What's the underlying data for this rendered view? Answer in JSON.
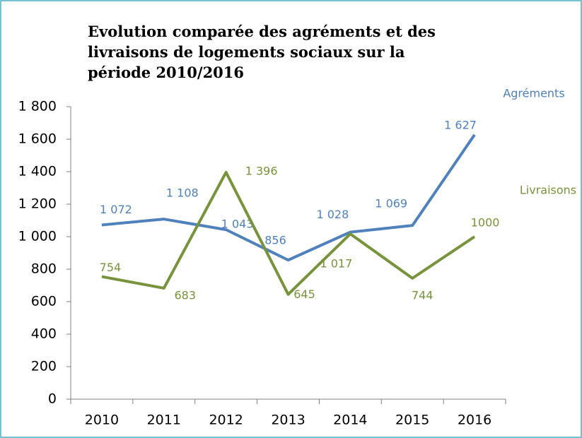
{
  "chart_data": {
    "type": "line",
    "title": "Evolution comparée des agréments et des livraisons de logements sociaux sur la période 2010/2016",
    "categories": [
      "2010",
      "2011",
      "2012",
      "2013",
      "2014",
      "2015",
      "2016"
    ],
    "series": [
      {
        "name": "Agréments",
        "color": "#4f81bd",
        "values": [
          1072,
          1108,
          1043,
          856,
          1028,
          1069,
          1627
        ],
        "value_labels": [
          "1 072",
          "1 108",
          "1 043",
          "856",
          "1 028",
          "1 069",
          "1 627"
        ]
      },
      {
        "name": "Livraisons",
        "color": "#77933c",
        "values": [
          754,
          683,
          1396,
          645,
          1017,
          744,
          1000
        ],
        "value_labels": [
          "754",
          "683",
          "1 396",
          "645",
          "1 017",
          "744",
          "1000"
        ]
      }
    ],
    "ylim": [
      0,
      1800
    ],
    "yticks": [
      0,
      200,
      400,
      600,
      800,
      {
        "value": 1000,
        "label": "1 000"
      },
      {
        "value": 1200,
        "label": "1 200"
      },
      {
        "value": 1400,
        "label": "1 400"
      },
      {
        "value": 1600,
        "label": "1 600"
      },
      {
        "value": 1800,
        "label": "1 800"
      }
    ],
    "grid": false
  }
}
